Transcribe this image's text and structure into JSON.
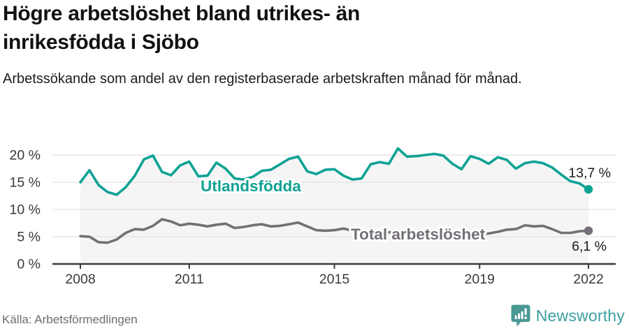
{
  "header": {
    "title": "Högre arbetslöshet bland utrikes- än inrikesfödda i Sjöbo",
    "subtitle": "Arbetssökande som andel av den registerbaserade arbetskraften månad för månad."
  },
  "footer": {
    "source": "Källa: Arbetsförmedlingen",
    "brand": "Newsworthy",
    "brand_text_color": "#3da0a0",
    "brand_icon_color": "#4a9894"
  },
  "chart_data": {
    "type": "line",
    "title": "",
    "xlabel": "",
    "ylabel": "",
    "x_start": 2008.0,
    "x_step": 0.25,
    "x_end": 2022.0,
    "xlim": [
      2007.25,
      2022.75
    ],
    "ylim": [
      0,
      21.5
    ],
    "grid": true,
    "grid_color": "#e2e2e2",
    "axis_color": "#3a3a3a",
    "axis_text_color": "#3a3a3a",
    "area_fill": "#f5f5f5",
    "value_label_color": "#1a1a1a",
    "x_ticks": [
      {
        "label": "2008",
        "value": 2008
      },
      {
        "label": "2011",
        "value": 2011
      },
      {
        "label": "2015",
        "value": 2015
      },
      {
        "label": "2019",
        "value": 2019
      },
      {
        "label": "2022",
        "value": 2022
      }
    ],
    "y_ticks": [
      {
        "label": "0 %",
        "value": 0
      },
      {
        "label": "5 %",
        "value": 5
      },
      {
        "label": "10 %",
        "value": 10
      },
      {
        "label": "15 %",
        "value": 15
      },
      {
        "label": "20 %",
        "value": 20
      }
    ],
    "series": [
      {
        "name": "Utlandsfödda",
        "color": "#0fa294",
        "end_label": "13,7 %",
        "end_value": 13.7,
        "filled": true,
        "values": [
          15.0,
          17.2,
          14.5,
          13.2,
          12.7,
          14.1,
          16.2,
          19.2,
          19.9,
          16.9,
          16.3,
          18.1,
          18.8,
          16.1,
          16.2,
          18.6,
          17.5,
          15.7,
          15.5,
          16.0,
          17.1,
          17.3,
          18.3,
          19.3,
          19.7,
          17.0,
          16.5,
          17.3,
          17.4,
          16.2,
          15.5,
          15.7,
          18.3,
          18.7,
          18.4,
          21.2,
          19.7,
          19.8,
          20.0,
          20.2,
          19.9,
          18.4,
          17.4,
          19.8,
          19.3,
          18.4,
          19.6,
          19.1,
          17.5,
          18.5,
          18.8,
          18.5,
          17.7,
          16.4,
          15.2,
          14.8,
          13.7
        ]
      },
      {
        "name": "Total arbetslöshet",
        "color": "#746f77",
        "end_label": "6,1 %",
        "end_value": 6.1,
        "filled": false,
        "values": [
          5.1,
          5.0,
          4.0,
          3.9,
          4.5,
          5.7,
          6.4,
          6.3,
          7.0,
          8.2,
          7.8,
          7.1,
          7.4,
          7.2,
          6.9,
          7.2,
          7.4,
          6.6,
          6.8,
          7.1,
          7.3,
          6.9,
          7.0,
          7.3,
          7.6,
          6.9,
          6.2,
          6.1,
          6.2,
          6.5,
          6.1,
          6.0,
          5.9,
          6.0,
          5.8,
          5.9,
          5.7,
          5.8,
          5.6,
          5.7,
          5.5,
          5.6,
          5.4,
          5.5,
          5.5,
          5.6,
          5.9,
          6.3,
          6.4,
          7.1,
          6.9,
          7.0,
          6.4,
          5.7,
          5.7,
          6.0,
          6.1
        ]
      }
    ]
  }
}
